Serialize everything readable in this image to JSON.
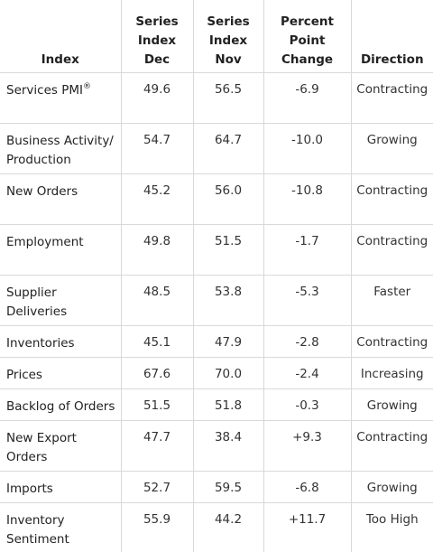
{
  "table": {
    "headers": {
      "index": "Index",
      "dec": [
        "Series",
        "Index",
        "Dec"
      ],
      "nov": [
        "Series",
        "Index",
        "Nov"
      ],
      "change": [
        "Percent",
        "Point",
        "Change"
      ],
      "direction": "Direction"
    },
    "rows": [
      {
        "name": [
          "Services PMI"
        ],
        "reg": "®",
        "dec": "49.6",
        "nov": "56.5",
        "change": "-6.9",
        "direction": "Contracting"
      },
      {
        "name": [
          "Business Activity/",
          "Production"
        ],
        "dec": "54.7",
        "nov": "64.7",
        "change": "-10.0",
        "direction": "Growing"
      },
      {
        "name": [
          "New Orders"
        ],
        "dec": "45.2",
        "nov": "56.0",
        "change": "-10.8",
        "direction": "Contracting"
      },
      {
        "name": [
          "Employment"
        ],
        "dec": "49.8",
        "nov": "51.5",
        "change": "-1.7",
        "direction": "Contracting"
      },
      {
        "name": [
          "Supplier",
          "Deliveries"
        ],
        "dec": "48.5",
        "nov": "53.8",
        "change": "-5.3",
        "direction": "Faster"
      },
      {
        "name": [
          "Inventories"
        ],
        "dec": "45.1",
        "nov": "47.9",
        "change": "-2.8",
        "direction": "Contracting"
      },
      {
        "name": [
          "Prices"
        ],
        "dec": "67.6",
        "nov": "70.0",
        "change": "-2.4",
        "direction": "Increasing"
      },
      {
        "name": [
          "Backlog of Orders"
        ],
        "dec": "51.5",
        "nov": "51.8",
        "change": "-0.3",
        "direction": "Growing"
      },
      {
        "name": [
          "New Export",
          "Orders"
        ],
        "dec": "47.7",
        "nov": "38.4",
        "change": "+9.3",
        "direction": "Contracting"
      },
      {
        "name": [
          "Imports"
        ],
        "dec": "52.7",
        "nov": "59.5",
        "change": "-6.8",
        "direction": "Growing"
      },
      {
        "name": [
          "Inventory",
          "Sentiment"
        ],
        "dec": "55.9",
        "nov": "44.2",
        "change": "+11.7",
        "direction": "Too High"
      }
    ]
  }
}
